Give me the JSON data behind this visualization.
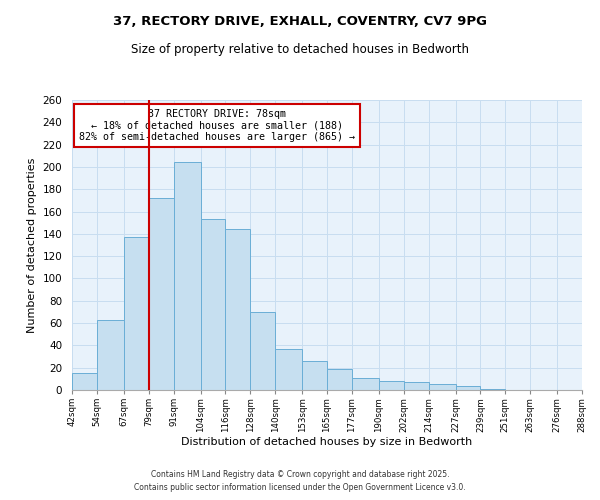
{
  "title": "37, RECTORY DRIVE, EXHALL, COVENTRY, CV7 9PG",
  "subtitle": "Size of property relative to detached houses in Bedworth",
  "xlabel": "Distribution of detached houses by size in Bedworth",
  "ylabel": "Number of detached properties",
  "bar_edges": [
    42,
    54,
    67,
    79,
    91,
    104,
    116,
    128,
    140,
    153,
    165,
    177,
    190,
    202,
    214,
    227,
    239,
    251,
    263,
    276,
    288
  ],
  "bar_heights": [
    15,
    63,
    137,
    172,
    204,
    153,
    144,
    70,
    37,
    26,
    19,
    11,
    8,
    7,
    5,
    4,
    1,
    0,
    0,
    0
  ],
  "bar_color": "#c6dff0",
  "bar_edgecolor": "#6aaed6",
  "property_line_x": 79,
  "annotation_title": "37 RECTORY DRIVE: 78sqm",
  "annotation_line1": "← 18% of detached houses are smaller (188)",
  "annotation_line2": "82% of semi-detached houses are larger (865) →",
  "annotation_box_color": "#ffffff",
  "annotation_box_edgecolor": "#cc0000",
  "vline_color": "#cc0000",
  "ylim": [
    0,
    260
  ],
  "xlim": [
    42,
    288
  ],
  "yticks": [
    0,
    20,
    40,
    60,
    80,
    100,
    120,
    140,
    160,
    180,
    200,
    220,
    240,
    260
  ],
  "xtick_labels": [
    "42sqm",
    "54sqm",
    "67sqm",
    "79sqm",
    "91sqm",
    "104sqm",
    "116sqm",
    "128sqm",
    "140sqm",
    "153sqm",
    "165sqm",
    "177sqm",
    "190sqm",
    "202sqm",
    "214sqm",
    "227sqm",
    "239sqm",
    "251sqm",
    "263sqm",
    "276sqm",
    "288sqm"
  ],
  "footer1": "Contains HM Land Registry data © Crown copyright and database right 2025.",
  "footer2": "Contains public sector information licensed under the Open Government Licence v3.0.",
  "bg_color": "#ffffff",
  "plot_bg_color": "#e8f2fb",
  "grid_color": "#c8ddf0"
}
